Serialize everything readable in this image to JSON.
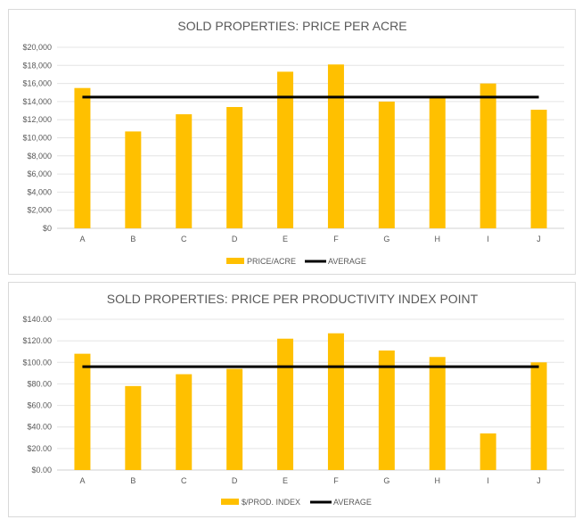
{
  "chart_data": [
    {
      "type": "bar",
      "title": "SOLD PROPERTIES: PRICE PER ACRE",
      "categories": [
        "A",
        "B",
        "C",
        "D",
        "E",
        "F",
        "G",
        "H",
        "I",
        "J"
      ],
      "series": [
        {
          "name": "PRICE/ACRE",
          "type": "bar",
          "color": "#FFC000",
          "values": [
            15500,
            10700,
            12600,
            13400,
            17300,
            18100,
            14000,
            14500,
            16000,
            13100
          ]
        },
        {
          "name": "AVERAGE",
          "type": "line",
          "color": "#000000",
          "values": [
            14500,
            14500,
            14500,
            14500,
            14500,
            14500,
            14500,
            14500,
            14500,
            14500
          ]
        }
      ],
      "y_ticks": [
        "$0",
        "$2,000",
        "$4,000",
        "$6,000",
        "$8,000",
        "$10,000",
        "$12,000",
        "$14,000",
        "$16,000",
        "$18,000",
        "$20,000"
      ],
      "ylim": [
        0,
        20000
      ],
      "grid": true,
      "legend": "bottom"
    },
    {
      "type": "bar",
      "title": "SOLD PROPERTIES: PRICE PER PRODUCTIVITY INDEX  POINT",
      "categories": [
        "A",
        "B",
        "C",
        "D",
        "E",
        "F",
        "G",
        "H",
        "I",
        "J"
      ],
      "series": [
        {
          "name": "$/PROD. INDEX",
          "type": "bar",
          "color": "#FFC000",
          "values": [
            108,
            78,
            89,
            94,
            122,
            127,
            111,
            105,
            34,
            100
          ]
        },
        {
          "name": "AVERAGE",
          "type": "line",
          "color": "#000000",
          "values": [
            96,
            96,
            96,
            96,
            96,
            96,
            96,
            96,
            96,
            96
          ]
        }
      ],
      "y_ticks": [
        "$0.00",
        "$20.00",
        "$40.00",
        "$60.00",
        "$80.00",
        "$100.00",
        "$120.00",
        "$140.00"
      ],
      "ylim": [
        0,
        140
      ],
      "grid": true,
      "legend": "bottom"
    }
  ]
}
